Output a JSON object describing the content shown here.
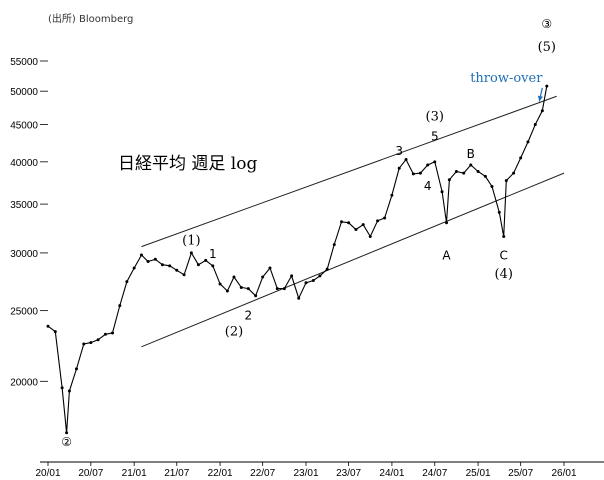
{
  "chart_data": {
    "type": "line",
    "source": "(出所) Bloomberg",
    "title": "日経平均 週足 log",
    "y_scale": "log",
    "ylim": [
      15500,
      63000
    ],
    "yticks": [
      {
        "label": "55000",
        "value": 55000
      },
      {
        "label": "50000",
        "value": 50000
      },
      {
        "label": "45000",
        "value": 45000
      },
      {
        "label": "40000",
        "value": 40000
      },
      {
        "label": "35000",
        "value": 35000
      },
      {
        "label": "30000",
        "value": 30000
      },
      {
        "label": "25000",
        "value": 25000
      },
      {
        "label": "20000",
        "value": 20000
      }
    ],
    "xticks": [
      {
        "label": "20/01",
        "value": "2020-01"
      },
      {
        "label": "20/07",
        "value": "2020-07"
      },
      {
        "label": "21/01",
        "value": "2021-01"
      },
      {
        "label": "21/07",
        "value": "2021-07"
      },
      {
        "label": "22/01",
        "value": "2022-01"
      },
      {
        "label": "22/07",
        "value": "2022-07"
      },
      {
        "label": "23/01",
        "value": "2023-01"
      },
      {
        "label": "23/07",
        "value": "2023-07"
      },
      {
        "label": "24/01",
        "value": "2024-01"
      },
      {
        "label": "24/07",
        "value": "2024-07"
      },
      {
        "label": "25/01",
        "value": "2025-01"
      },
      {
        "label": "25/07",
        "value": "2025-07"
      },
      {
        "label": "26/01",
        "value": "2026-01"
      }
    ],
    "series": [
      {
        "color": "#000000",
        "x": [
          "2020-01",
          "2020-02",
          "2020-03",
          "2020-03-20",
          "2020-04",
          "2020-05",
          "2020-06",
          "2020-07",
          "2020-08",
          "2020-09",
          "2020-10",
          "2020-11",
          "2020-12",
          "2021-01",
          "2021-02",
          "2021-03",
          "2021-04",
          "2021-05",
          "2021-06",
          "2021-07",
          "2021-08",
          "2021-09",
          "2021-10",
          "2021-11",
          "2021-12",
          "2022-01",
          "2022-02",
          "2022-03",
          "2022-04",
          "2022-05",
          "2022-06",
          "2022-07",
          "2022-08",
          "2022-09",
          "2022-10",
          "2022-11",
          "2022-12",
          "2023-01",
          "2023-02",
          "2023-03",
          "2023-04",
          "2023-05",
          "2023-06",
          "2023-07",
          "2023-08",
          "2023-09",
          "2023-10",
          "2023-11",
          "2023-12",
          "2024-01",
          "2024-02",
          "2024-03",
          "2024-04",
          "2024-05",
          "2024-06",
          "2024-07",
          "2024-08",
          "2024-08-20",
          "2024-09",
          "2024-10",
          "2024-11",
          "2024-12",
          "2025-01",
          "2025-02",
          "2025-03",
          "2025-04",
          "2025-04-20",
          "2025-05",
          "2025-06",
          "2025-07",
          "2025-08",
          "2025-09",
          "2025-10",
          "2025-10-20"
        ],
        "y": [
          23800,
          23400,
          19600,
          17000,
          19400,
          20800,
          22500,
          22600,
          22800,
          23200,
          23300,
          25400,
          27400,
          28600,
          29800,
          29200,
          29400,
          28900,
          28800,
          28400,
          28000,
          30000,
          28900,
          29300,
          28800,
          27200,
          26600,
          27800,
          26900,
          26800,
          26200,
          27800,
          28600,
          26800,
          26800,
          27900,
          26000,
          27300,
          27500,
          27900,
          28500,
          30800,
          33100,
          33000,
          32300,
          32800,
          31600,
          33200,
          33500,
          36000,
          39200,
          40300,
          38500,
          38600,
          39600,
          40000,
          36400,
          33000,
          37800,
          38800,
          38600,
          39600,
          38800,
          38200,
          37000,
          34100,
          31600,
          37700,
          38600,
          40500,
          42600,
          45000,
          47000,
          50800
        ]
      }
    ],
    "trendlines": [
      {
        "name": "upper-channel",
        "x": [
          "2021-02",
          "2025-12"
        ],
        "y": [
          30600,
          49200
        ]
      },
      {
        "name": "lower-channel",
        "x": [
          "2021-02",
          "2026-01"
        ],
        "y": [
          22300,
          38600
        ]
      }
    ],
    "annotations": [
      {
        "text": "②",
        "x": "2020-03-20",
        "y": 16300,
        "style": "circled"
      },
      {
        "text": "③",
        "x": "2025-10-20",
        "y": 61000,
        "style": "circled"
      },
      {
        "text": "(5)",
        "x": "2025-10-20",
        "y": 56800,
        "style": "serif"
      },
      {
        "text": "throw-over",
        "x": "2025-05",
        "y": 51500,
        "style": "blue"
      },
      {
        "text": "(1)",
        "x": "2021-09",
        "y": 30800,
        "style": "serif"
      },
      {
        "text": "1",
        "x": "2021-12",
        "y": 29500,
        "style": "sans"
      },
      {
        "text": "2",
        "x": "2022-05",
        "y": 24300,
        "style": "sans"
      },
      {
        "text": "(2)",
        "x": "2022-03",
        "y": 23100,
        "style": "serif"
      },
      {
        "text": "3",
        "x": "2024-02",
        "y": 40900,
        "style": "sans"
      },
      {
        "text": "(3)",
        "x": "2024-07",
        "y": 45600,
        "style": "serif"
      },
      {
        "text": "5",
        "x": "2024-07",
        "y": 42800,
        "style": "sans"
      },
      {
        "text": "4",
        "x": "2024-06",
        "y": 36600,
        "style": "sans"
      },
      {
        "text": "A",
        "x": "2024-08-20",
        "y": 29400,
        "style": "sans"
      },
      {
        "text": "B",
        "x": "2024-12",
        "y": 40500,
        "style": "sans"
      },
      {
        "text": "C",
        "x": "2025-04-20",
        "y": 29400,
        "style": "sans"
      },
      {
        "text": "(4)",
        "x": "2025-04-20",
        "y": 27700,
        "style": "serif"
      }
    ]
  }
}
